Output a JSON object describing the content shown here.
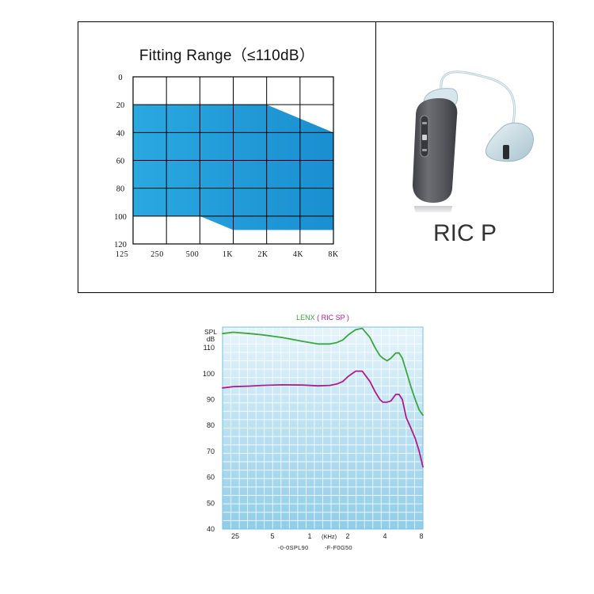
{
  "chart_data": [
    {
      "type": "area",
      "title": "Fitting Range（≤110dB）",
      "y_tick_labels": [
        "0",
        "20",
        "40",
        "60",
        "80",
        "100",
        "120"
      ],
      "x_tick_labels": [
        "125",
        "250",
        "500",
        "1K",
        "2K",
        "4K",
        "8K"
      ],
      "ylim": [
        0,
        120
      ],
      "y_inverted": true,
      "grid": true,
      "fill_color": "#1e9bd9",
      "series": [
        {
          "upper_bound_db": [
            20,
            20,
            20,
            20,
            20,
            30,
            40
          ],
          "lower_bound_db": [
            100,
            100,
            100,
            110,
            110,
            110,
            110
          ]
        }
      ]
    },
    {
      "type": "line",
      "title_prefix": "LENX",
      "title_suffix": "( RIC SP )",
      "ylabel": "SPL dB",
      "ylabel_line1": "SPL",
      "ylabel_line2": "dB",
      "x_tick_labels": [
        "25",
        "5",
        "1",
        "(KHz)",
        "2",
        "4",
        "8"
      ],
      "y_tick_labels": [
        "110",
        "100",
        "90",
        "80",
        "70",
        "60",
        "50",
        "40"
      ],
      "ylim": [
        40,
        118
      ],
      "grid": true,
      "legend": [
        "-0-0SPL90",
        "-F-F0G50"
      ],
      "series": [
        {
          "color": "#3aa83a",
          "x_khz": [
            0.25,
            0.3,
            0.4,
            0.5,
            0.7,
            1.0,
            1.3,
            1.6,
            1.8,
            2.0,
            2.2,
            2.5,
            2.8,
            3.2,
            3.5,
            3.8,
            4.0,
            4.3,
            4.6,
            5.0,
            5.3,
            5.6,
            6.0,
            6.5,
            7.0,
            7.5,
            8.0
          ],
          "y_db": [
            115.5,
            116,
            115.5,
            115,
            114,
            112.5,
            111.5,
            111.5,
            112,
            113,
            115,
            117,
            117.5,
            114,
            110,
            107,
            106,
            105,
            106,
            108,
            108,
            106,
            101,
            95,
            90,
            86,
            84
          ]
        },
        {
          "color": "#b01a8f",
          "x_khz": [
            0.25,
            0.3,
            0.4,
            0.5,
            0.7,
            1.0,
            1.3,
            1.6,
            1.8,
            2.0,
            2.2,
            2.5,
            2.8,
            3.2,
            3.5,
            3.8,
            4.0,
            4.3,
            4.6,
            5.0,
            5.3,
            5.6,
            6.0,
            6.5,
            7.0,
            7.5,
            8.0
          ],
          "y_db": [
            94.5,
            95,
            95.2,
            95.5,
            95.7,
            95.6,
            95.3,
            95.5,
            96,
            97,
            99,
            101,
            101,
            97,
            93,
            90,
            89,
            89,
            89.5,
            92,
            92,
            90,
            83,
            79,
            75,
            70,
            64
          ]
        }
      ]
    }
  ],
  "product": {
    "name": "RIC P",
    "shell_color": "#5b5d63",
    "tube_color": "#c9dde5"
  }
}
